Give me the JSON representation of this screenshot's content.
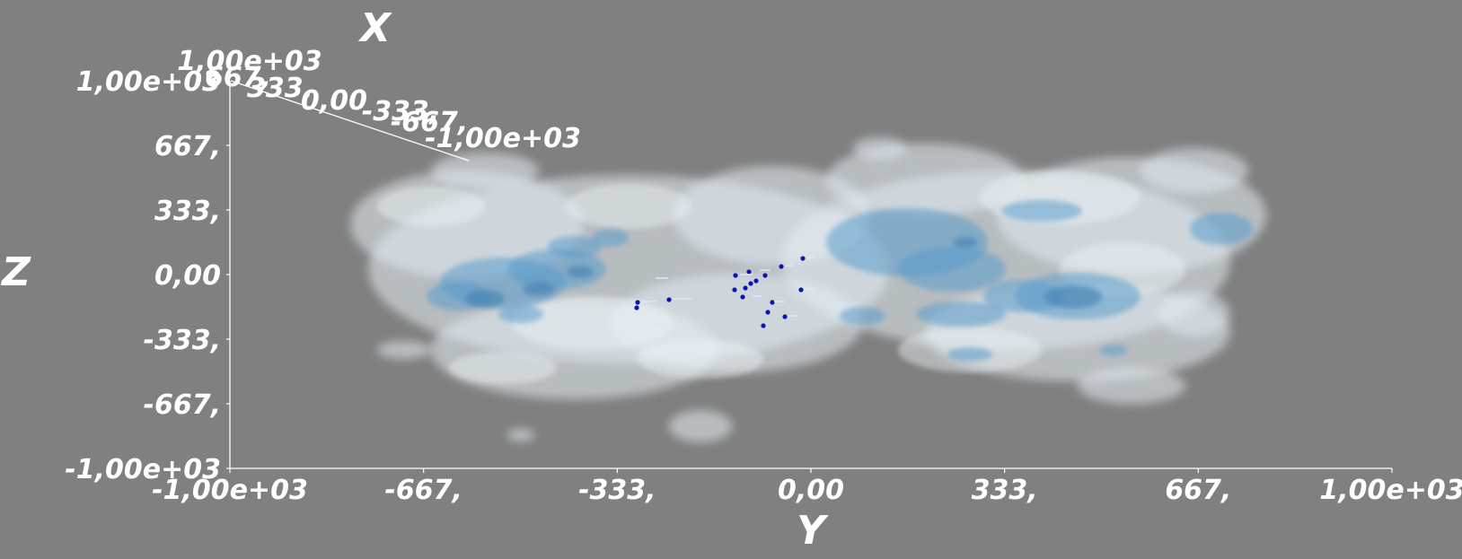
{
  "viewer": {
    "background": "#808080",
    "axis_color": "#ffffff",
    "isosurface_outer_color": "#e3ecf3",
    "isosurface_inner_color": "#5a9ccc",
    "marker_color": "#0a14b4"
  },
  "axes": {
    "x": {
      "title": "X",
      "ticks": [
        "1,00e+03",
        "667,",
        "333,",
        "0,00",
        "-333,",
        "-667,",
        "-1,00e+03"
      ]
    },
    "y": {
      "title": "Y",
      "ticks": [
        "-1,00e+03",
        "-667,",
        "-333,",
        "0,00",
        "333,",
        "667,",
        "1,00e+03"
      ]
    },
    "z": {
      "title": "Z",
      "ticks": [
        "1,00e+03",
        "667,",
        "333,",
        "0,00",
        "-333,",
        "-667,",
        "-1,00e+03"
      ]
    }
  }
}
